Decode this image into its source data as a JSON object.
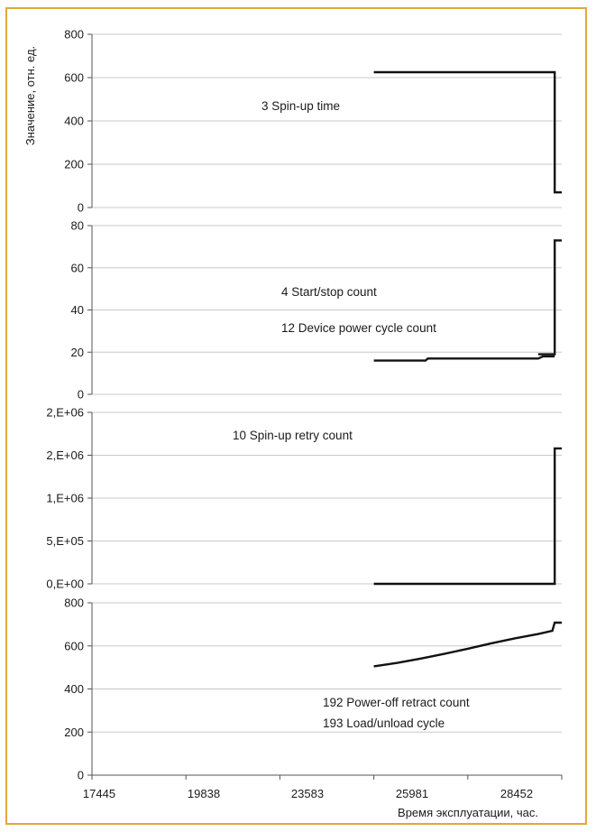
{
  "axes": {
    "ylabel": "Значение, отн. ед.",
    "xlabel": "Время эксплуатации, час.",
    "x_ticks": [
      "17445",
      "19838",
      "23583",
      "25981",
      "28452"
    ]
  },
  "chart_data": [
    {
      "type": "line",
      "title": "",
      "ylabel": "Значение, отн. ед.",
      "ylim": [
        0,
        800
      ],
      "y_ticks": [
        "0",
        "200",
        "400",
        "600",
        "800"
      ],
      "grid": true,
      "annotations": [
        "3 Spin-up time"
      ],
      "series": [
        {
          "x": [
            0.6,
            0.985,
            0.985,
            1.0
          ],
          "y": [
            625,
            625,
            70,
            70
          ]
        }
      ]
    },
    {
      "type": "line",
      "title": "",
      "ylim": [
        0,
        80
      ],
      "y_ticks": [
        "0",
        "20",
        "40",
        "60",
        "80"
      ],
      "grid": true,
      "annotations": [
        "4 Start/stop count",
        "12 Device power cycle count"
      ],
      "series": [
        {
          "x": [
            0.6,
            0.71,
            0.715,
            0.95,
            0.96,
            0.985
          ],
          "y": [
            16,
            16,
            17,
            17,
            18,
            18
          ]
        },
        {
          "x": [
            0.95,
            0.985,
            0.985,
            1.0
          ],
          "y": [
            19,
            19,
            73,
            73
          ]
        }
      ]
    },
    {
      "type": "line",
      "title": "",
      "ylim": [
        0,
        2000000
      ],
      "y_ticks": [
        "0,E+00",
        "5,E+05",
        "1,E+06",
        "2,E+06",
        "2,E+06"
      ],
      "grid": true,
      "annotations": [
        "10 Spin-up  retry count"
      ],
      "series": [
        {
          "x": [
            0.6,
            0.985,
            0.985,
            1.0
          ],
          "y": [
            0,
            0,
            1580000,
            1580000
          ]
        }
      ]
    },
    {
      "type": "line",
      "title": "",
      "ylim": [
        0,
        800
      ],
      "y_ticks": [
        "0",
        "200",
        "400",
        "600",
        "800"
      ],
      "grid": true,
      "annotations": [
        "192 Power-off retract count",
        "193 Load/unload cycle"
      ],
      "series": [
        {
          "x": [
            0.6,
            0.65,
            0.7,
            0.75,
            0.8,
            0.85,
            0.9,
            0.95,
            0.98,
            0.985,
            1.0
          ],
          "y": [
            505,
            521,
            541,
            563,
            587,
            612,
            635,
            655,
            670,
            708,
            708
          ]
        }
      ]
    }
  ]
}
